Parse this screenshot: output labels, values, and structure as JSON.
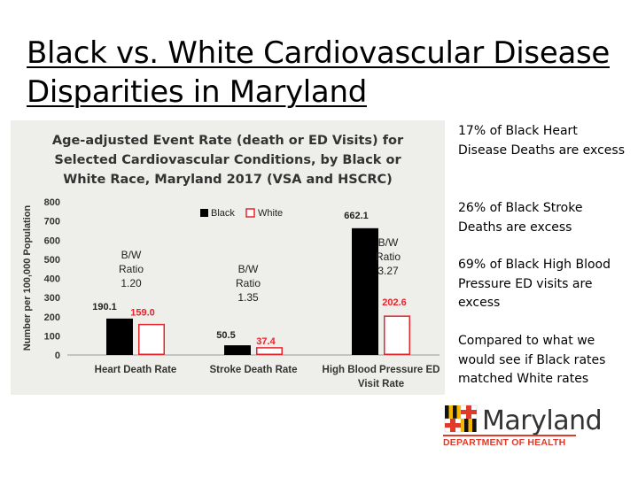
{
  "slide": {
    "title_line1": "Black vs. White Cardiovascular Disease",
    "title_line2": "Disparities in Maryland"
  },
  "notes": [
    "17% of Black Heart Disease Deaths are excess",
    "26% of Black Stroke Deaths are excess",
    "69% of Black High Blood Pressure ED  visits are excess",
    "Compared to what we would see if Black rates matched White rates"
  ],
  "logo": {
    "word": "Maryland",
    "department": "DEPARTMENT OF HEALTH",
    "flag_icon": "maryland-flag-icon"
  },
  "colors": {
    "black": "#000000",
    "white_fill": "#ffffff",
    "white_border": "#e8232b",
    "white_label": "#e8232b",
    "panel": "#eeeeea"
  },
  "chart_data": {
    "type": "bar",
    "title": [
      "Age-adjusted Event Rate (death or ED Visits) for",
      "Selected Cardiovascular Conditions, by Black or",
      "White Race, Maryland 2017 (VSA and HSCRC)"
    ],
    "ylabel": "Number per 100,000 Population",
    "xlabel": "",
    "ylim": [
      0,
      800
    ],
    "yticks": [
      "0",
      "100",
      "200",
      "300",
      "400",
      "500",
      "600",
      "700",
      "800"
    ],
    "categories": [
      [
        "Heart Death Rate"
      ],
      [
        "Stroke Death Rate"
      ],
      [
        "High Blood Pressure ED",
        "Visit Rate"
      ]
    ],
    "series": [
      {
        "name": "Black",
        "values": [
          190.1,
          50.5,
          662.1
        ],
        "labels": [
          "190.1",
          "50.5",
          "662.1"
        ]
      },
      {
        "name": "White",
        "values": [
          159.0,
          37.4,
          202.6
        ],
        "labels": [
          "159.0",
          "37.4",
          "202.6"
        ]
      }
    ],
    "ratios": [
      [
        "B/W",
        "Ratio",
        "1.20"
      ],
      [
        "B/W",
        "Ratio",
        "1.35"
      ],
      [
        "B/W",
        "Ratio",
        "3.27"
      ]
    ],
    "legend": "top-center",
    "grid": false
  }
}
